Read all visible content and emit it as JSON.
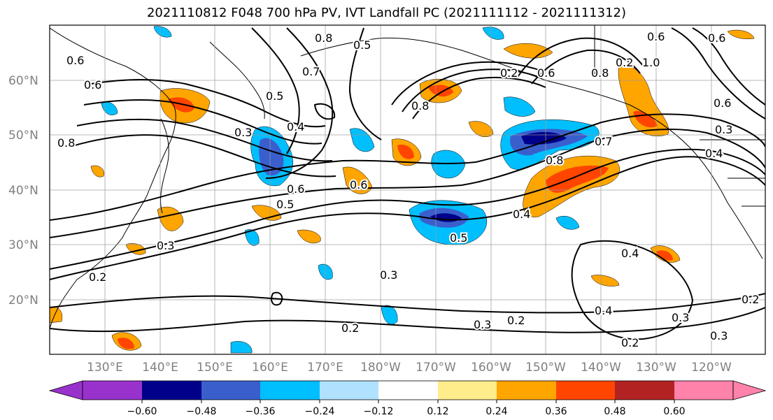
{
  "title": "2021110812 F048 700 hPa PV, IVT Landfall PC (2021111112 - 2021111312)",
  "lat_labels": [
    "60°N",
    "50°N",
    "40°N",
    "30°N",
    "20°N"
  ],
  "lon_labels": [
    "130°E",
    "140°E",
    "150°E",
    "160°E",
    "170°E",
    "180°W",
    "170°W",
    "160°W",
    "150°W",
    "140°W",
    "130°W",
    "120°W"
  ],
  "colorbar": {
    "ticks": [
      "−0.60",
      "−0.48",
      "−0.36",
      "−0.24",
      "−0.12",
      "0.12",
      "0.24",
      "0.36",
      "0.48",
      "0.60"
    ],
    "colors": [
      "#9932cc",
      "#00008b",
      "#3a5fcd",
      "#00bfff",
      "#b0e2ff",
      "#ffffff",
      "#ffec8b",
      "#ffa500",
      "#ff4500",
      "#b22222",
      "#ff82ab"
    ]
  },
  "contour_labels": [
    "0.6",
    "0.6",
    "0.8",
    "0.8",
    "0.5",
    "0.7",
    "0.5",
    "0.4",
    "0.3",
    "0.6",
    "0.5",
    "0.6",
    "0.5",
    "0.3",
    "0.2",
    "0.3",
    "0.2",
    "0.8",
    "0.8",
    "0.2",
    "0.6",
    "0.7",
    "0.8",
    "0.4",
    "0.4",
    "0.3",
    "0.4",
    "0.2",
    "0.3",
    "0.3",
    "0.2",
    "0.4",
    "0.3",
    "0.2",
    "1.0",
    "0.6",
    "0.6",
    "0.2",
    "0.6"
  ]
}
